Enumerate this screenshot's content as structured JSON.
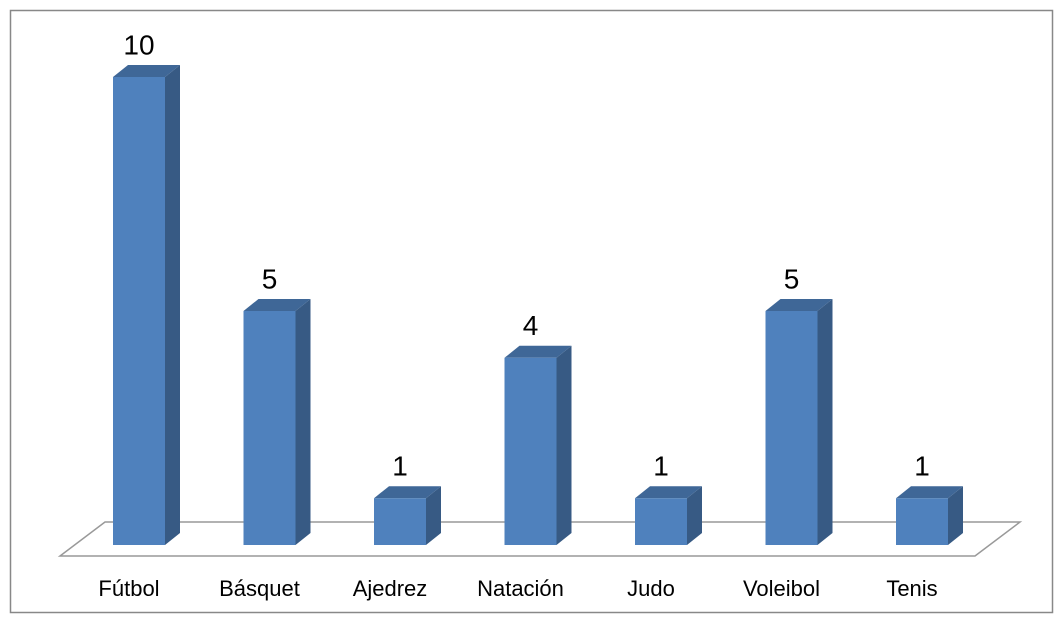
{
  "chart_data": {
    "type": "bar",
    "categories": [
      "Fútbol",
      "Básquet",
      "Ajedrez",
      "Natación",
      "Judo",
      "Voleibol",
      "Tenis"
    ],
    "values": [
      10,
      5,
      1,
      4,
      1,
      5,
      1
    ],
    "color": "#4f81bd"
  }
}
